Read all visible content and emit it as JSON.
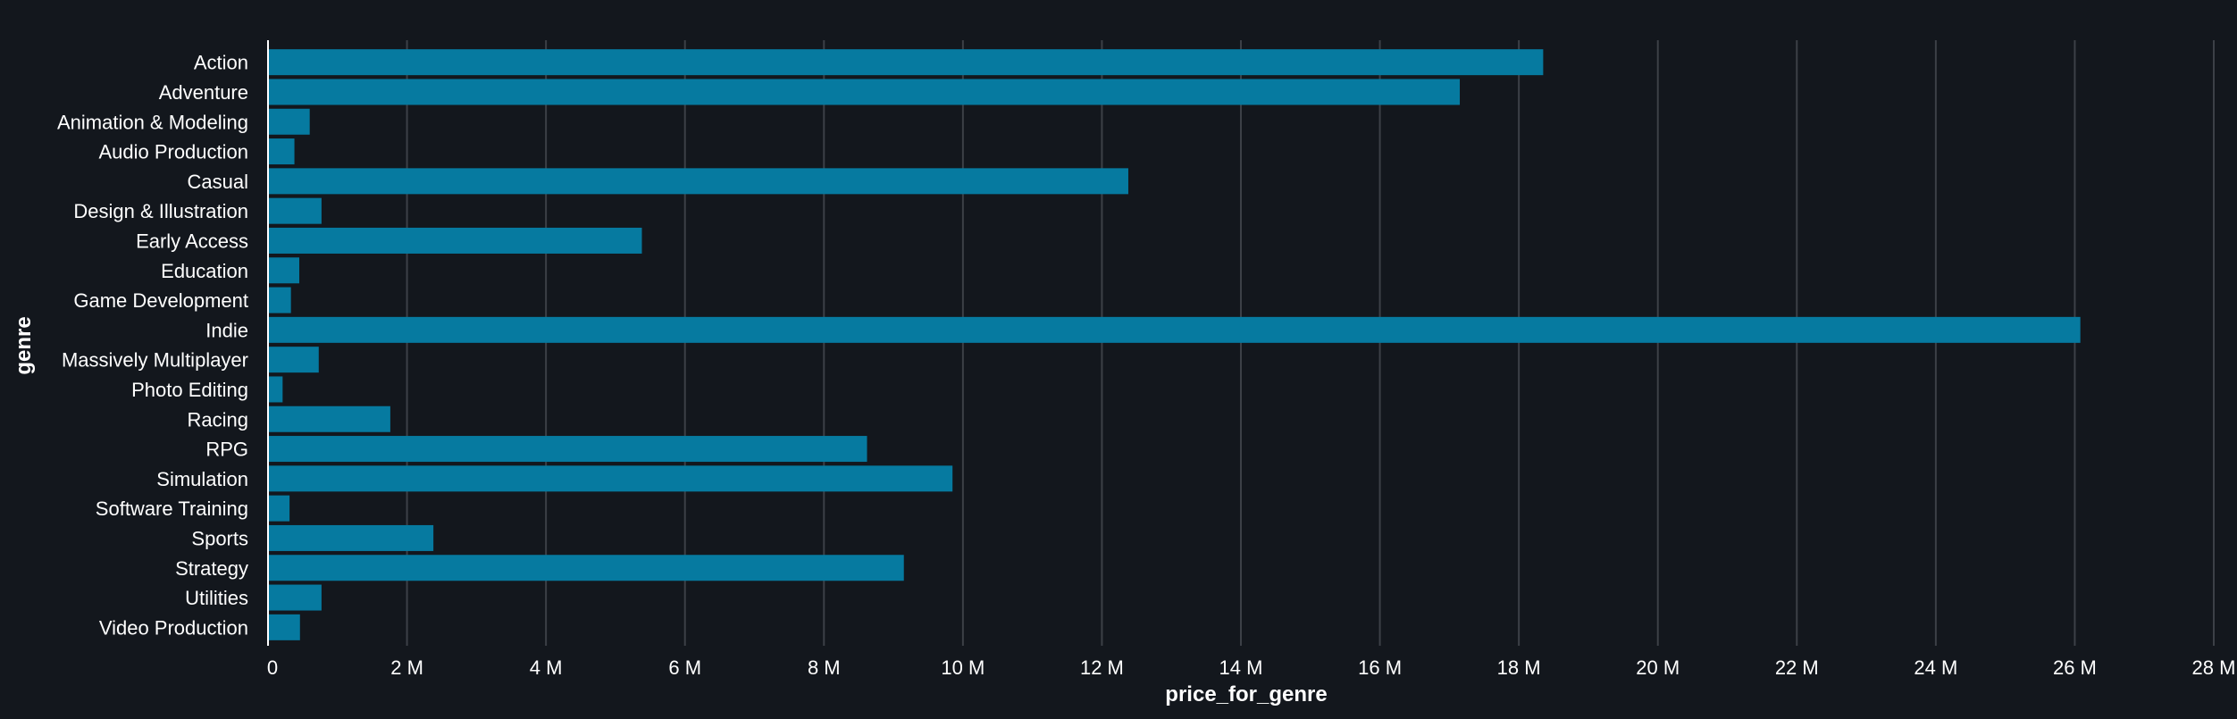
{
  "chart_data": {
    "type": "bar",
    "orientation": "horizontal",
    "title": "",
    "xlabel": "price_for_genre",
    "ylabel": "genre",
    "categories": [
      "Action",
      "Adventure",
      "Animation & Modeling",
      "Audio Production",
      "Casual",
      "Design & Illustration",
      "Early Access",
      "Education",
      "Game Development",
      "Indie",
      "Massively Multiplayer",
      "Photo Editing",
      "Racing",
      "RPG",
      "Simulation",
      "Software Training",
      "Sports",
      "Strategy",
      "Utilities",
      "Video Production"
    ],
    "values": [
      18350000,
      17150000,
      600000,
      380000,
      12380000,
      770000,
      5380000,
      450000,
      330000,
      26080000,
      730000,
      210000,
      1760000,
      8620000,
      9850000,
      310000,
      2380000,
      9150000,
      770000,
      460000
    ],
    "xlim": [
      0,
      28000000
    ],
    "xticks": [
      0,
      2000000,
      4000000,
      6000000,
      8000000,
      10000000,
      12000000,
      14000000,
      16000000,
      18000000,
      20000000,
      22000000,
      24000000,
      26000000,
      28000000
    ],
    "xtick_labels": [
      "0",
      "2 M",
      "4 M",
      "6 M",
      "8 M",
      "10 M",
      "12 M",
      "14 M",
      "16 M",
      "18 M",
      "20 M",
      "22 M",
      "24 M",
      "26 M",
      "28 M"
    ],
    "grid": true,
    "colors": {
      "bar": "#067aa0",
      "background": "#13171d",
      "grid": "#3c4047",
      "text": "#ffffff"
    }
  }
}
